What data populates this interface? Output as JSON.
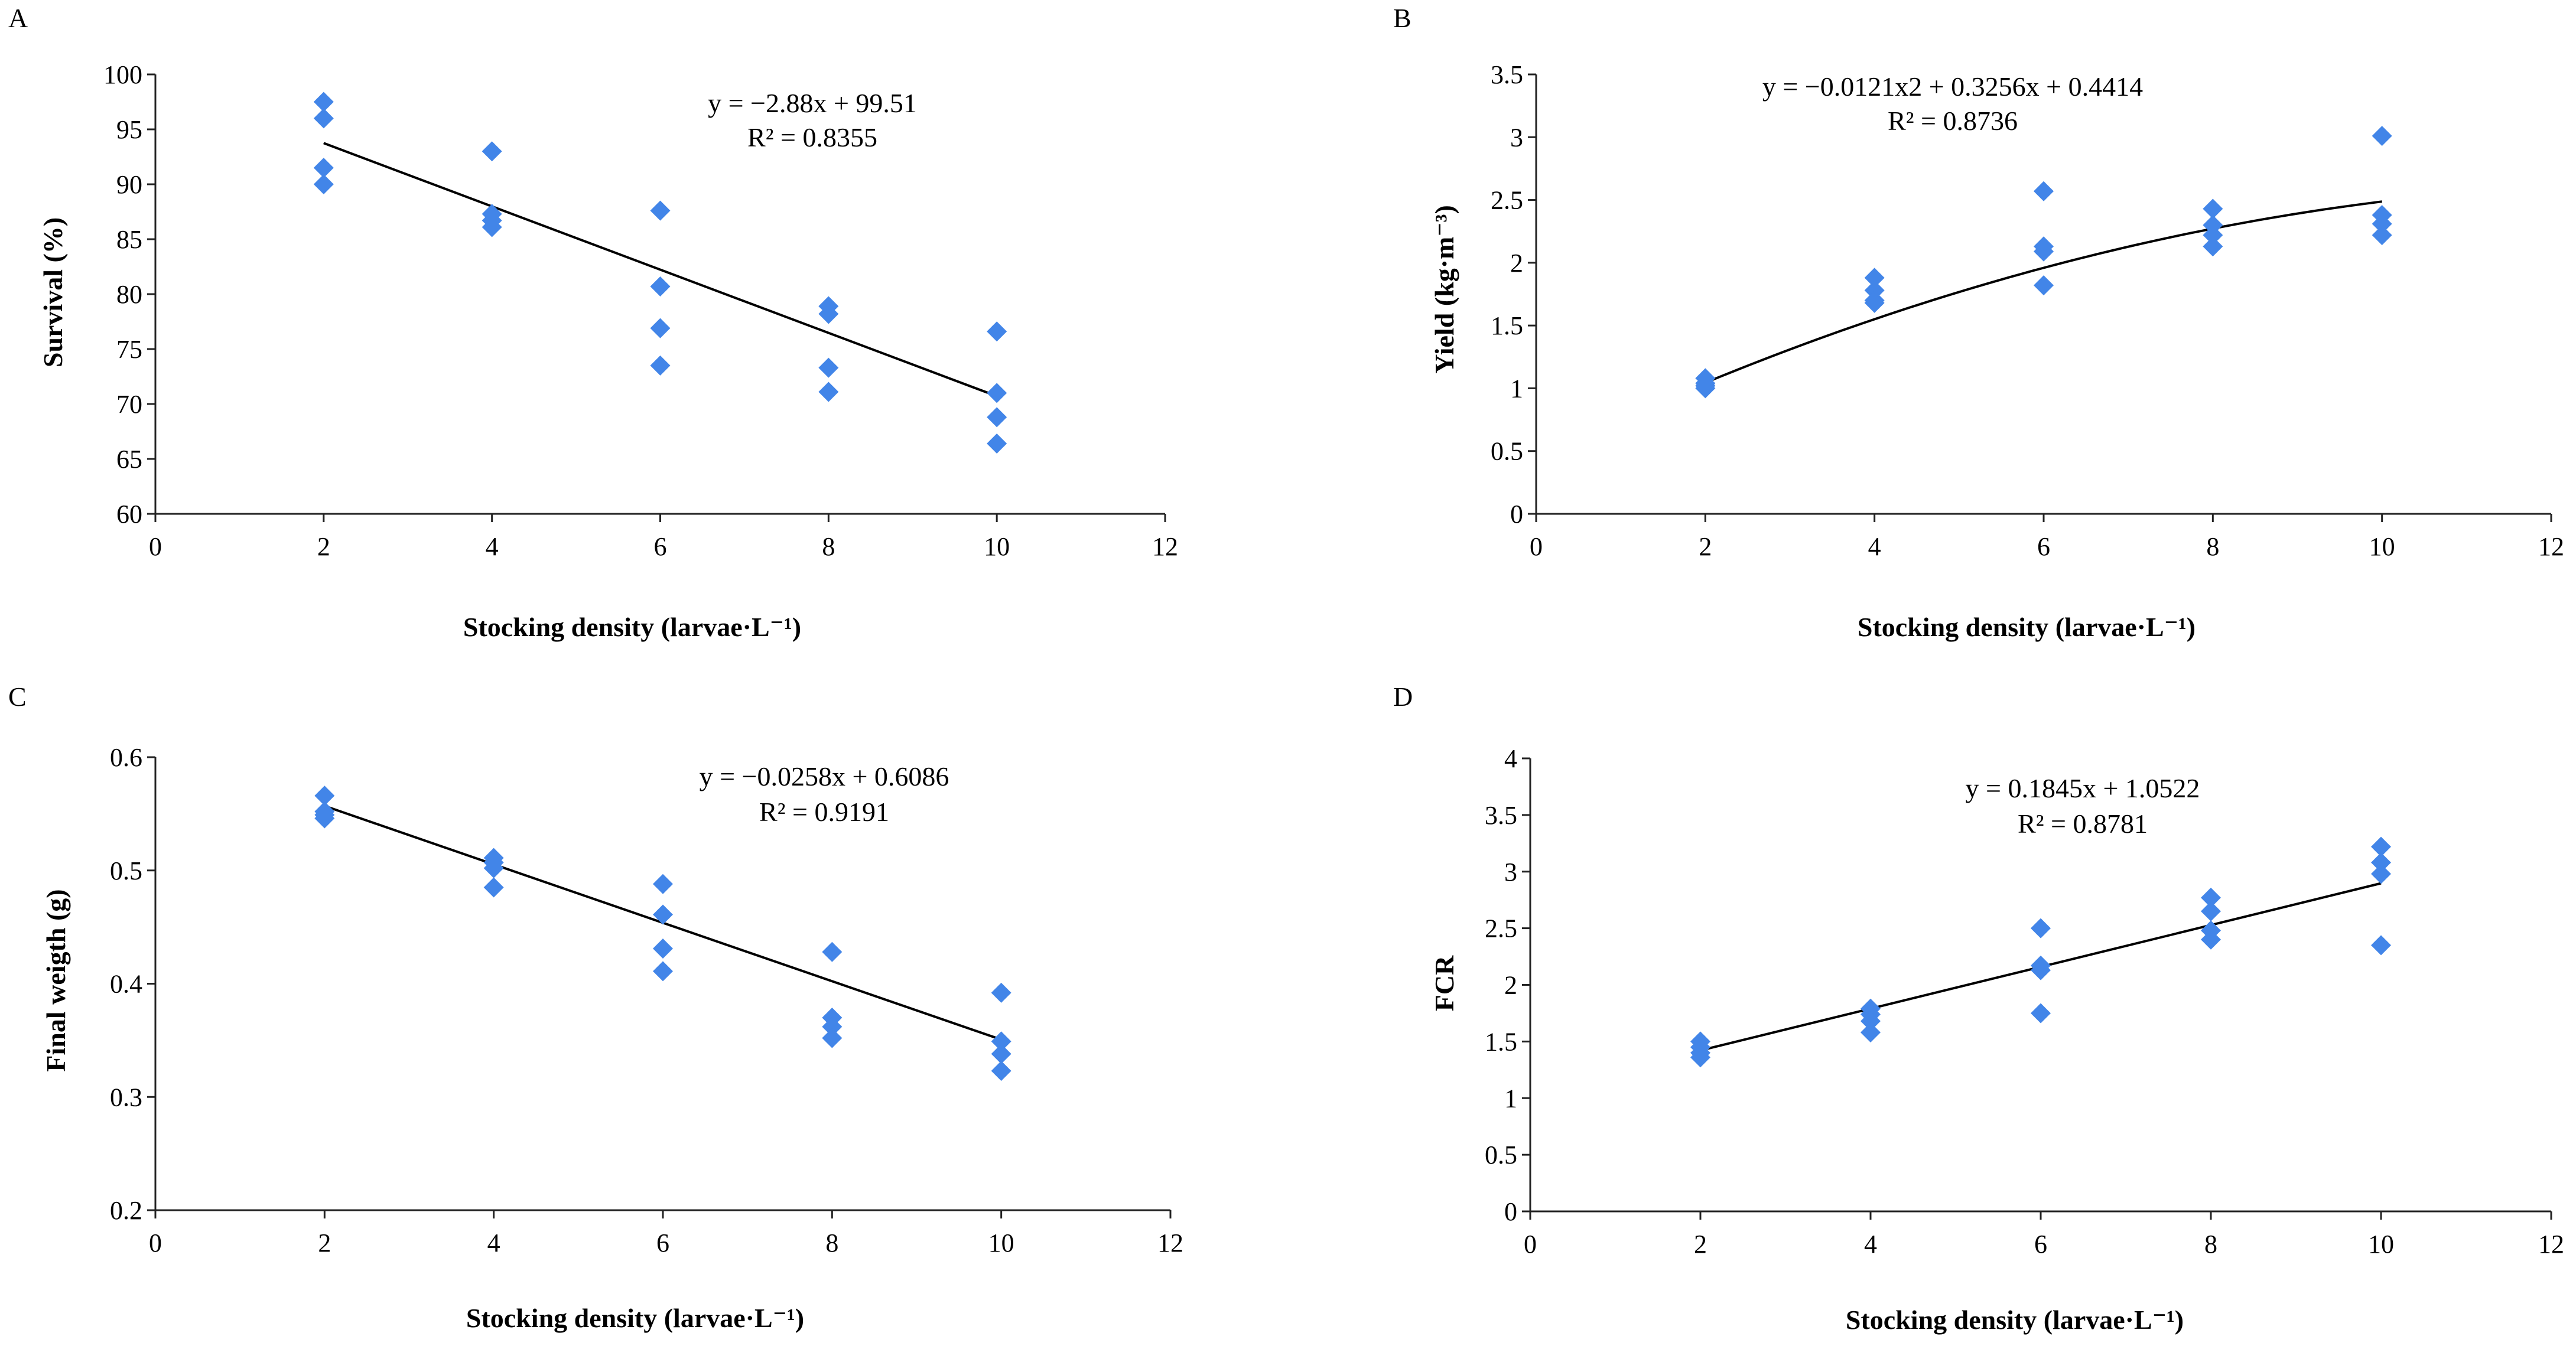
{
  "chart_data": [
    {
      "type": "scatter",
      "panel": "A",
      "xlabel": "Stocking density (larvae·L⁻¹)",
      "ylabel": "Survival (%)",
      "xlim": [
        0,
        12
      ],
      "ylim": [
        60,
        100
      ],
      "xticks": [
        0,
        2,
        4,
        6,
        8,
        10,
        12
      ],
      "yticks": [
        60,
        65,
        70,
        75,
        80,
        85,
        90,
        95,
        100
      ],
      "x": [
        2,
        2,
        2,
        2,
        4,
        4,
        4,
        4,
        6,
        6,
        6,
        6,
        8,
        8,
        8,
        8,
        10,
        10,
        10,
        10
      ],
      "y": [
        97.5,
        96,
        91.5,
        90,
        93,
        87.3,
        86.7,
        86.1,
        87.6,
        80.7,
        76.9,
        73.5,
        78.9,
        78.2,
        73.3,
        71.1,
        76.6,
        71,
        68.8,
        66.4
      ],
      "trend": {
        "kind": "linear",
        "coef": [
          99.51,
          -2.88
        ],
        "x_range": [
          2,
          10
        ]
      },
      "equation": "y = −2.88x + 99.51",
      "r2": "R² = 0.8355",
      "grid": false,
      "marker_color": "#4285e8"
    },
    {
      "type": "scatter",
      "panel": "B",
      "xlabel": "Stocking density (larvae·L⁻¹)",
      "ylabel": "Yield (kg·m⁻³)",
      "xlim": [
        0,
        12
      ],
      "ylim": [
        0,
        3.5
      ],
      "xticks": [
        0,
        2,
        4,
        6,
        8,
        10,
        12
      ],
      "yticks": [
        0,
        0.5,
        1,
        1.5,
        2,
        2.5,
        3,
        3.5
      ],
      "x": [
        2,
        2,
        2,
        2,
        4,
        4,
        4,
        4,
        6,
        6,
        6,
        6,
        8,
        8,
        8,
        8,
        10,
        10,
        10,
        10
      ],
      "y": [
        1.08,
        1.04,
        1.02,
        1.0,
        1.88,
        1.78,
        1.7,
        1.68,
        2.57,
        2.13,
        2.09,
        1.82,
        2.43,
        2.3,
        2.22,
        2.13,
        3.01,
        2.38,
        2.31,
        2.22
      ],
      "trend": {
        "kind": "quadratic",
        "coef": [
          0.4414,
          0.3256,
          -0.0121
        ],
        "x_range": [
          2,
          10
        ]
      },
      "equation": "y = −0.0121x2 + 0.3256x + 0.4414",
      "r2": "R² = 0.8736",
      "grid": false,
      "marker_color": "#4285e8"
    },
    {
      "type": "scatter",
      "panel": "C",
      "xlabel": "Stocking density (larvae·L⁻¹)",
      "ylabel": "Final weigth (g)",
      "xlim": [
        0,
        12
      ],
      "ylim": [
        0.2,
        0.6
      ],
      "xticks": [
        0,
        2,
        4,
        6,
        8,
        10,
        12
      ],
      "yticks": [
        0.2,
        0.3,
        0.4,
        0.5,
        0.6
      ],
      "x": [
        2,
        2,
        2,
        2,
        4,
        4,
        4,
        4,
        6,
        6,
        6,
        6,
        8,
        8,
        8,
        8,
        10,
        10,
        10,
        10
      ],
      "y": [
        0.566,
        0.552,
        0.549,
        0.546,
        0.511,
        0.507,
        0.502,
        0.485,
        0.488,
        0.461,
        0.431,
        0.411,
        0.428,
        0.37,
        0.362,
        0.352,
        0.392,
        0.349,
        0.338,
        0.323
      ],
      "trend": {
        "kind": "linear",
        "coef": [
          0.6086,
          -0.0258
        ],
        "x_range": [
          2,
          10
        ]
      },
      "equation": "y = −0.0258x + 0.6086",
      "r2": "R² = 0.9191",
      "grid": false,
      "marker_color": "#4285e8"
    },
    {
      "type": "scatter",
      "panel": "D",
      "xlabel": "Stocking density (larvae·L⁻¹)",
      "ylabel": "FCR",
      "xlim": [
        0,
        12
      ],
      "ylim": [
        0,
        4
      ],
      "xticks": [
        0,
        2,
        4,
        6,
        8,
        10,
        12
      ],
      "yticks": [
        0,
        0.5,
        1,
        1.5,
        2,
        2.5,
        3,
        3.5,
        4
      ],
      "x": [
        2,
        2,
        2,
        2,
        4,
        4,
        4,
        4,
        6,
        6,
        6,
        6,
        8,
        8,
        8,
        8,
        10,
        10,
        10,
        10
      ],
      "y": [
        1.5,
        1.45,
        1.4,
        1.36,
        1.79,
        1.74,
        1.68,
        1.58,
        2.5,
        2.17,
        2.13,
        1.75,
        2.77,
        2.65,
        2.48,
        2.4,
        3.22,
        3.08,
        2.98,
        2.35
      ],
      "trend": {
        "kind": "linear",
        "coef": [
          1.0522,
          0.1845
        ],
        "x_range": [
          2,
          10
        ]
      },
      "equation": "y = 0.1845x + 1.0522",
      "r2": "R² = 0.8781",
      "grid": false,
      "marker_color": "#4285e8"
    }
  ]
}
